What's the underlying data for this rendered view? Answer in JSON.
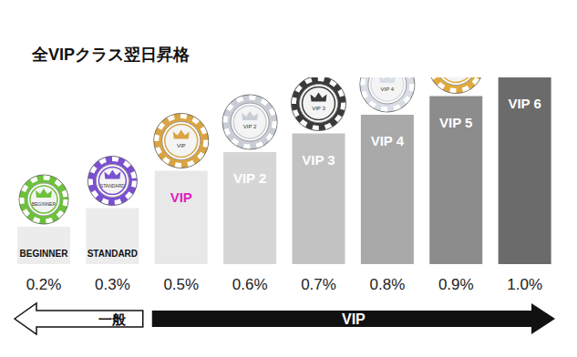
{
  "chart_data": {
    "type": "bar",
    "title": "全VIPクラス翌日昇格",
    "categories": [
      "BEGINNER",
      "STANDARD",
      "VIP",
      "VIP 2",
      "VIP 3",
      "VIP 4",
      "VIP 5",
      "VIP 6"
    ],
    "values": [
      0.2,
      0.3,
      0.5,
      0.6,
      0.7,
      0.8,
      0.9,
      1.0
    ],
    "value_labels": [
      "0.2%",
      "0.3%",
      "0.5%",
      "0.6%",
      "0.7%",
      "0.8%",
      "0.9%",
      "1.0%"
    ],
    "colors": [
      "#ececec",
      "#ececec",
      "#e8e8e8",
      "#d6d6d6",
      "#c2c2c2",
      "#a9a9a9",
      "#8c8c8c",
      "#6b6b6b"
    ],
    "ylim": [
      0,
      1
    ],
    "tick_labels": false,
    "data_labels": true,
    "groups": [
      {
        "label": "一般",
        "categories": [
          "BEGINNER",
          "STANDARD"
        ]
      },
      {
        "label": "VIP",
        "categories": [
          "VIP",
          "VIP 2",
          "VIP 3",
          "VIP 4",
          "VIP 5",
          "VIP 6"
        ]
      }
    ]
  }
}
